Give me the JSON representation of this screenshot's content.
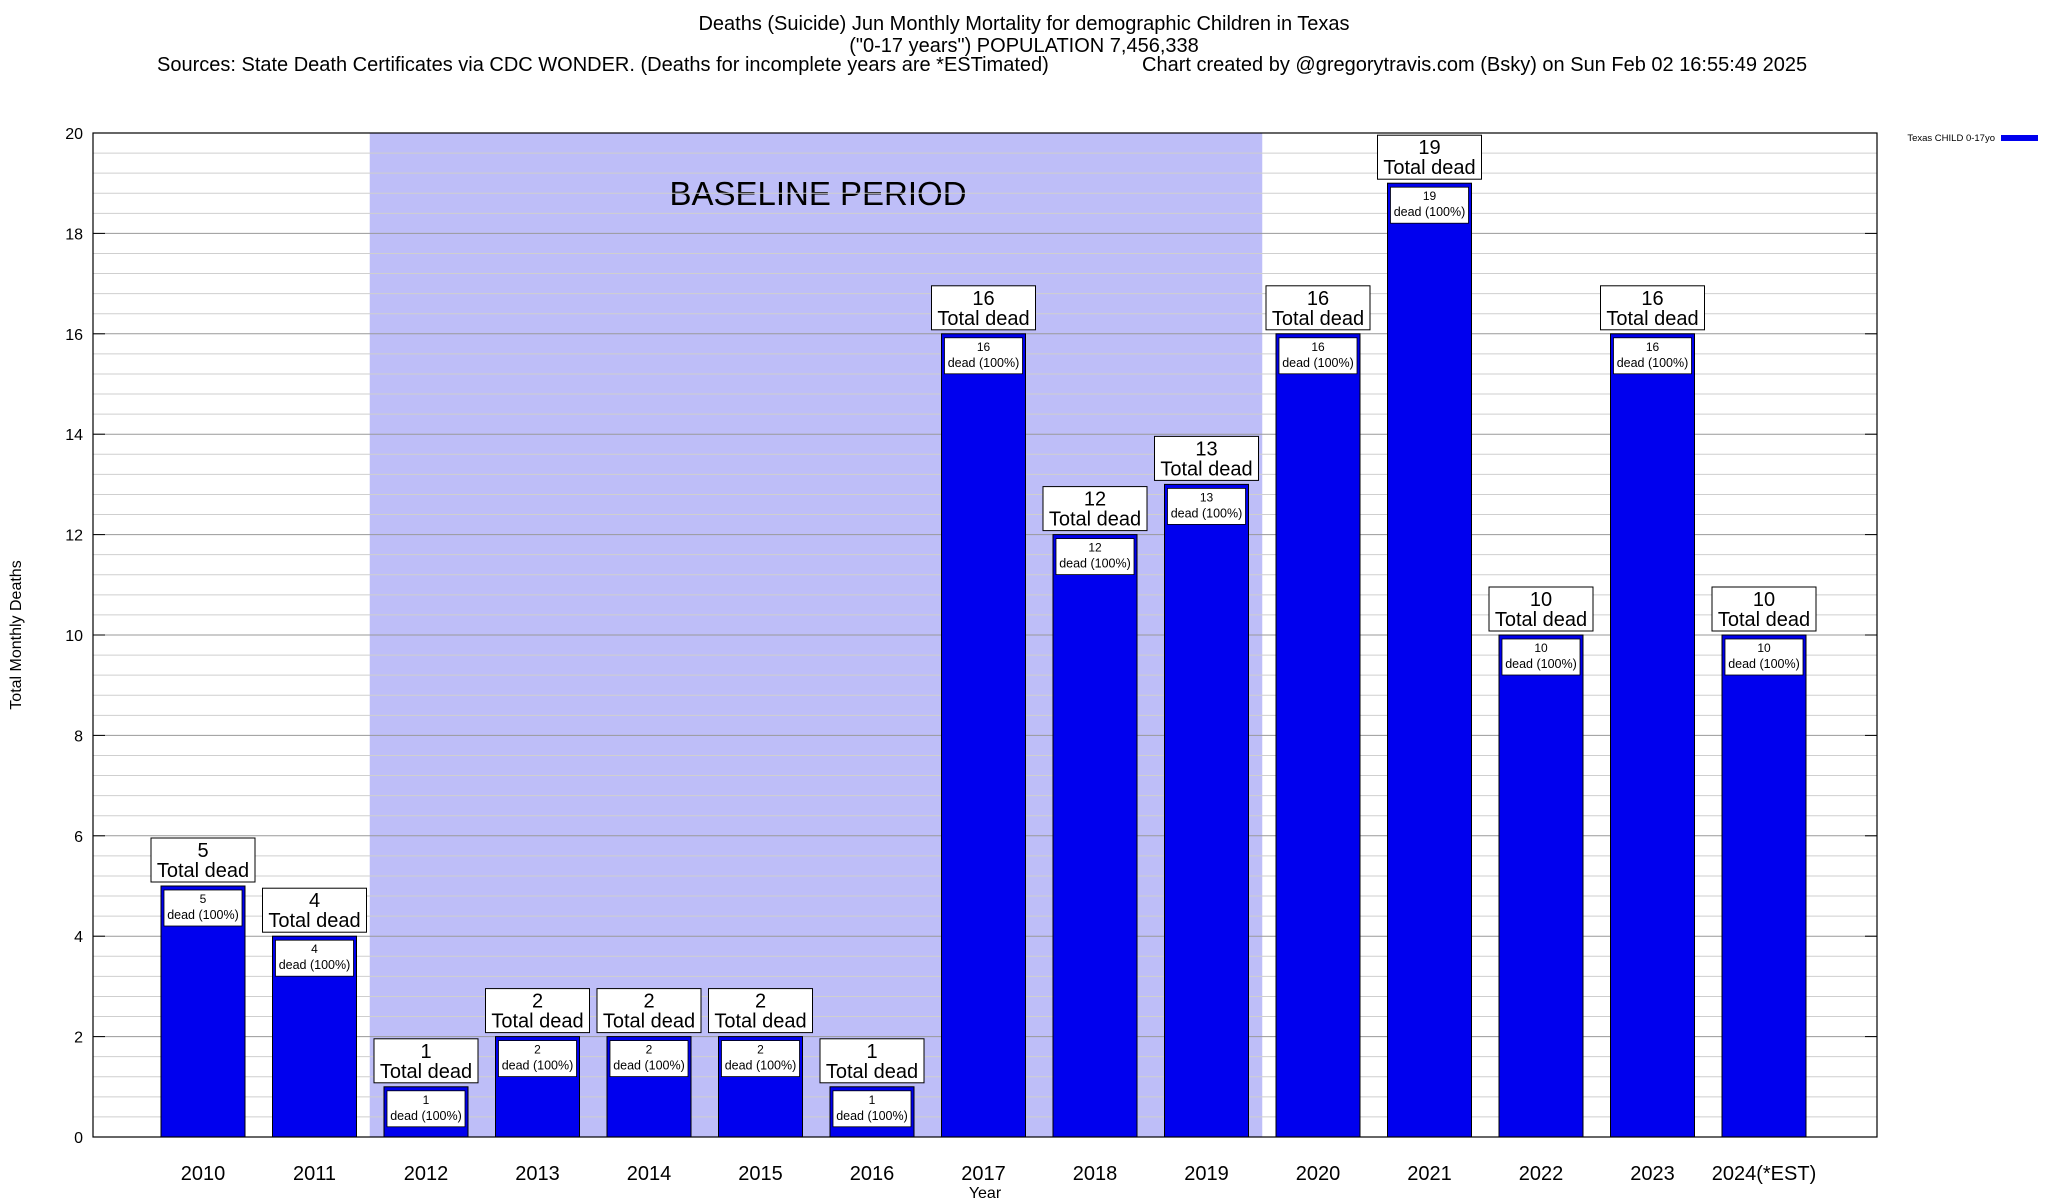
{
  "header": {
    "title_line1": "Deaths (Suicide) Jun Monthly Mortality for demographic Children in Texas",
    "title_line2": "(\"0-17 years\") POPULATION 7,456,338",
    "sources": "Sources: State Death Certificates via CDC WONDER. (Deaths for incomplete years are *ESTimated)",
    "credit": "Chart created by @gregorytravis.com (Bsky) on Sun Feb 02 16:55:49 2025"
  },
  "chart_data": {
    "type": "bar",
    "title": "Deaths (Suicide) Jun Monthly Mortality for demographic Children in Texas",
    "xlabel": "Year",
    "ylabel": "Total Monthly Deaths",
    "ylim": [
      0,
      20
    ],
    "yticks": [
      0,
      2,
      4,
      6,
      8,
      10,
      12,
      14,
      16,
      18,
      20
    ],
    "grid": true,
    "legend_position": "top-right",
    "categories": [
      "2010",
      "2011",
      "2012",
      "2013",
      "2014",
      "2015",
      "2016",
      "2017",
      "2018",
      "2019",
      "2020",
      "2021",
      "2022",
      "2023",
      "2024(*EST)"
    ],
    "series": [
      {
        "name": "Texas CHILD 0-17yo",
        "color": "#0000ee",
        "values": [
          5,
          4,
          1,
          2,
          2,
          2,
          1,
          16,
          12,
          13,
          16,
          19,
          10,
          16,
          10
        ]
      }
    ],
    "baseline": {
      "label": "BASELINE PERIOD",
      "start": "2012",
      "end": "2019",
      "color": "#bebef8"
    },
    "total_label_suffix": "Total dead",
    "inner_label_suffix": "dead (100%)"
  }
}
